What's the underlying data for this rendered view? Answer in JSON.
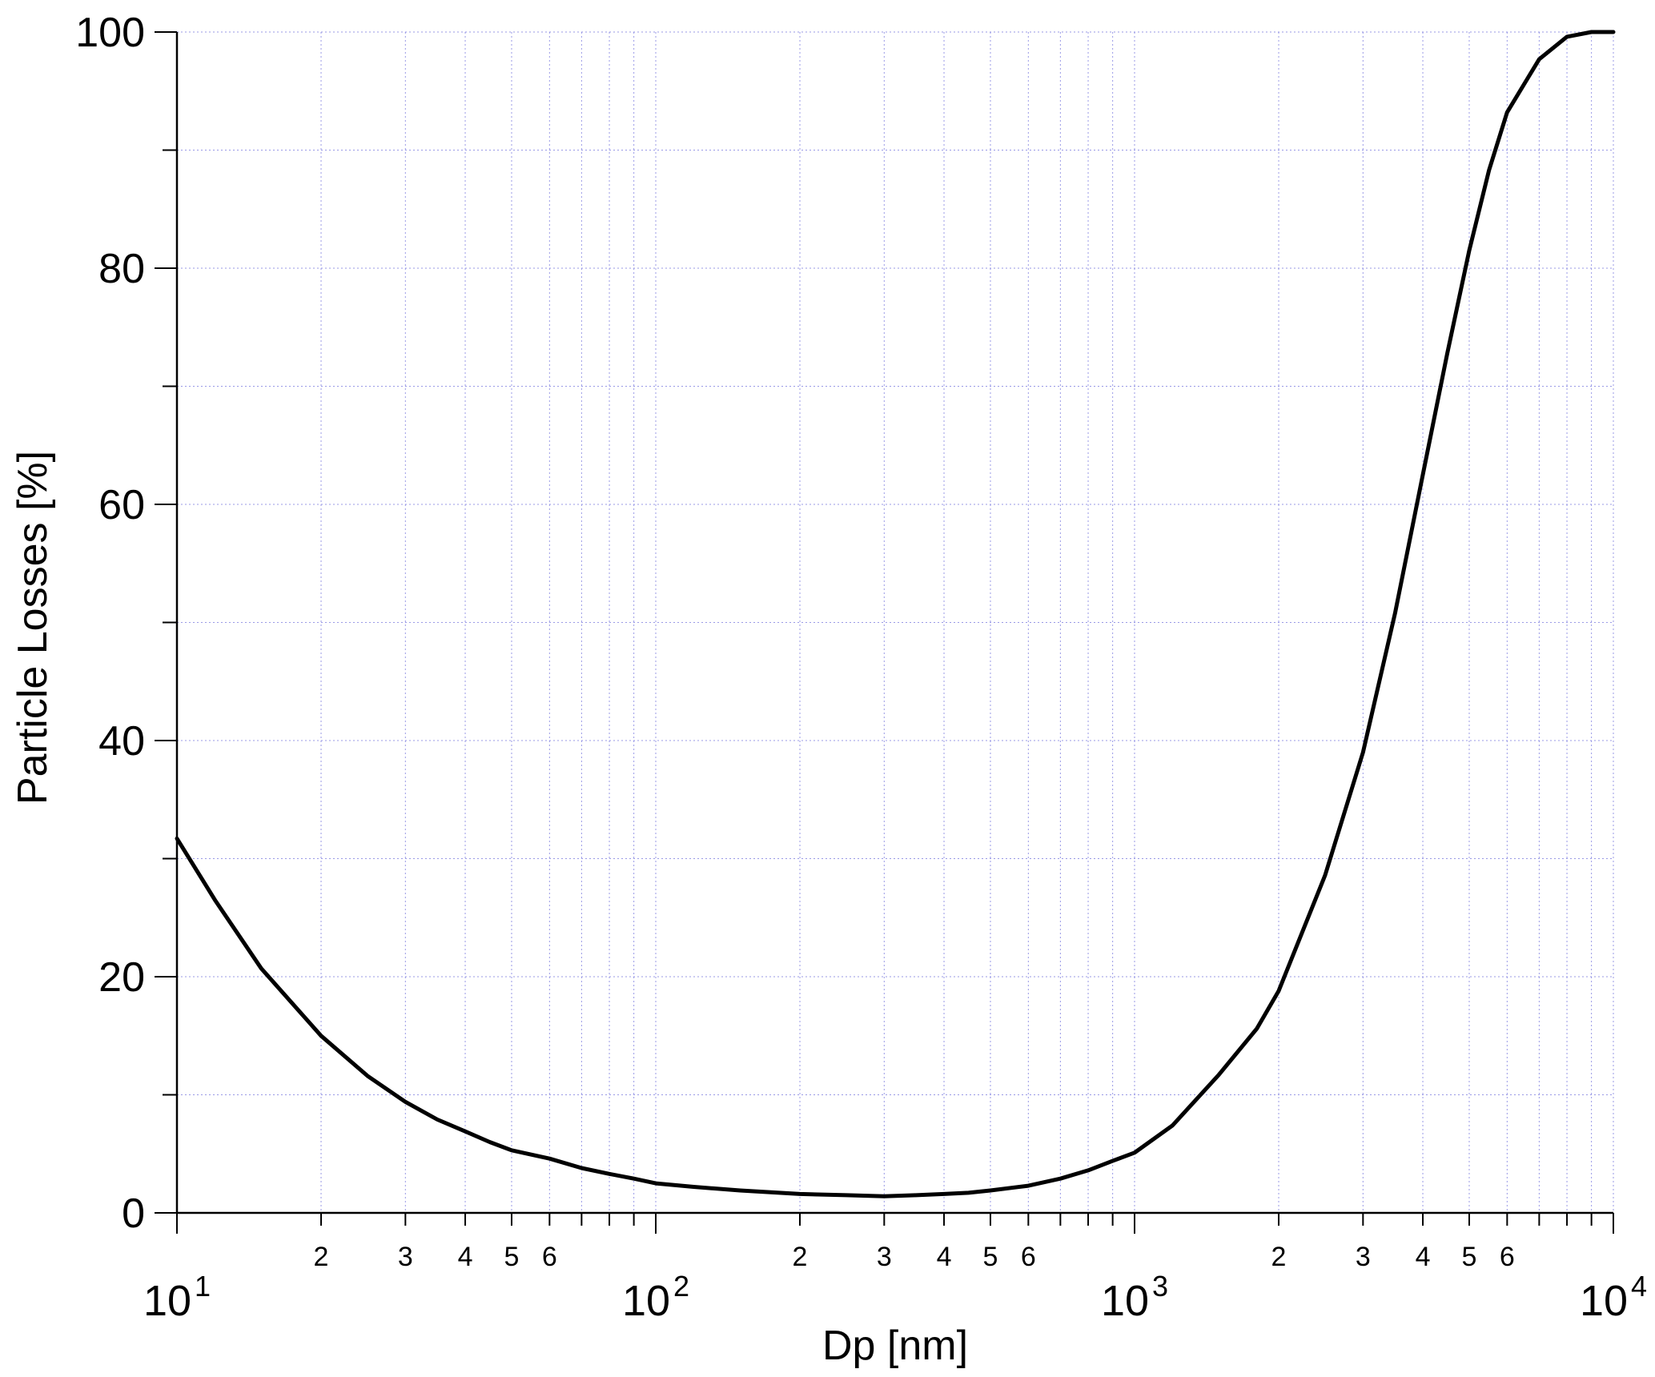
{
  "chart_data": {
    "type": "line",
    "title": "",
    "xlabel": "Dp [nm]",
    "ylabel": "Particle Losses [%]",
    "xscale": "log",
    "xlim": [
      10,
      10000
    ],
    "ylim": [
      0,
      100
    ],
    "grid": true,
    "legend": "none",
    "x_major_tick_labels": [
      {
        "value": 10,
        "base": "10",
        "exp": "1"
      },
      {
        "value": 100,
        "base": "10",
        "exp": "2"
      },
      {
        "value": 1000,
        "base": "10",
        "exp": "3"
      },
      {
        "value": 10000,
        "base": "10",
        "exp": "4"
      }
    ],
    "x_minor_tick_labels": [
      "2",
      "3",
      "4",
      "5",
      "6"
    ],
    "y_tick_labels": [
      "0",
      "20",
      "40",
      "60",
      "80",
      "100"
    ],
    "colors": {
      "line": "#000000",
      "grid": "#8080e0",
      "axes": "#000000"
    },
    "series": [
      {
        "x": [
          10,
          12,
          15,
          20,
          25,
          30,
          35,
          40,
          45,
          50,
          60,
          70,
          80,
          90,
          100,
          120,
          150,
          200,
          250,
          300,
          350,
          400,
          450,
          500,
          600,
          700,
          800,
          900,
          1000,
          1200,
          1500,
          1800,
          2000,
          2500,
          3000,
          3500,
          4000,
          4500,
          5000,
          5500,
          6000,
          7000,
          8000,
          9000,
          10000
        ],
        "y": [
          31.7,
          26.5,
          20.7,
          15.0,
          11.6,
          9.4,
          7.9,
          6.9,
          6.0,
          5.3,
          4.6,
          3.8,
          3.3,
          2.9,
          2.5,
          2.2,
          1.9,
          1.6,
          1.5,
          1.4,
          1.5,
          1.6,
          1.7,
          1.9,
          2.3,
          2.9,
          3.6,
          4.4,
          5.1,
          7.4,
          11.7,
          15.6,
          18.8,
          28.6,
          39.0,
          50.8,
          62.5,
          72.8,
          81.5,
          88.3,
          93.2,
          97.7,
          99.6,
          100.0,
          100.0
        ]
      }
    ]
  }
}
